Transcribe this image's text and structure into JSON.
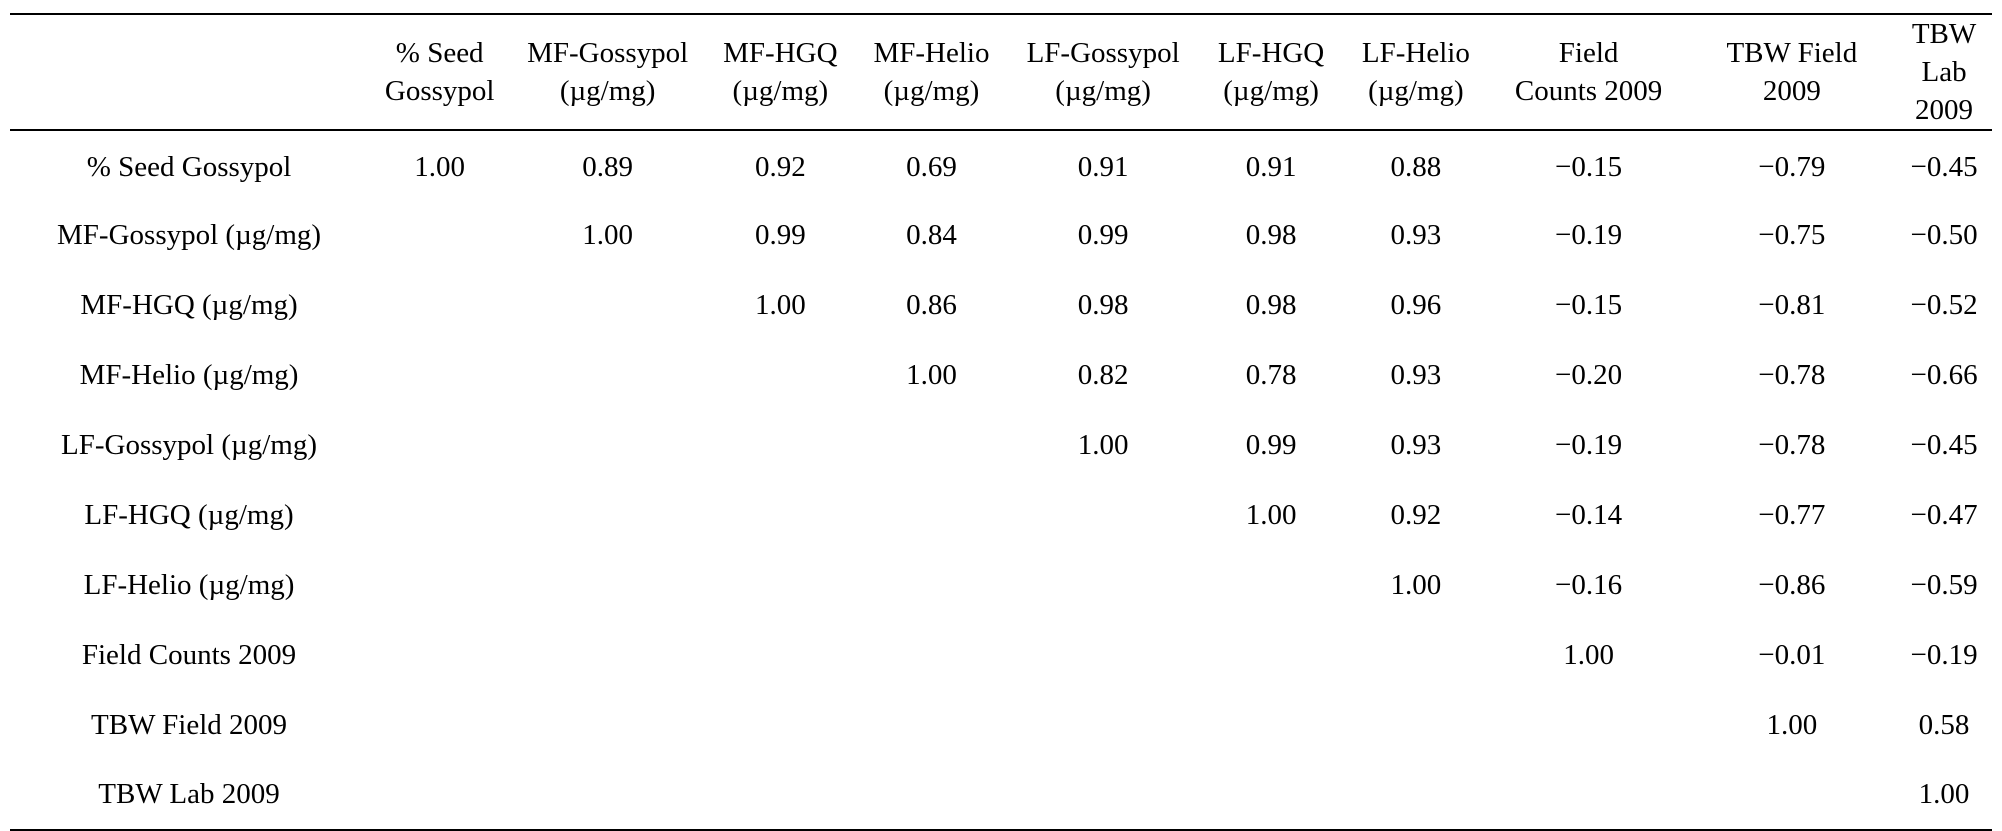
{
  "table": {
    "columns": [
      {
        "line1": "% Seed",
        "line2": "Gossypol"
      },
      {
        "line1": "MF-Gossypol",
        "line2": "(µg/mg)"
      },
      {
        "line1": "MF-HGQ",
        "line2": "(µg/mg)"
      },
      {
        "line1": "MF-Helio",
        "line2": "(µg/mg)"
      },
      {
        "line1": "LF-Gossypol",
        "line2": "(µg/mg)"
      },
      {
        "line1": "LF-HGQ",
        "line2": "(µg/mg)"
      },
      {
        "line1": "LF-Helio",
        "line2": "(µg/mg)"
      },
      {
        "line1": "Field",
        "line2": "Counts 2009"
      },
      {
        "line1": "TBW Field",
        "line2": "2009"
      },
      {
        "line1": "TBW",
        "line2": "Lab 2009"
      }
    ],
    "rows": [
      {
        "label": "% Seed Gossypol",
        "values": [
          "1.00",
          "0.89",
          "0.92",
          "0.69",
          "0.91",
          "0.91",
          "0.88",
          "−0.15",
          "−0.79",
          "−0.45"
        ]
      },
      {
        "label": "MF-Gossypol (µg/mg)",
        "values": [
          "",
          "1.00",
          "0.99",
          "0.84",
          "0.99",
          "0.98",
          "0.93",
          "−0.19",
          "−0.75",
          "−0.50"
        ]
      },
      {
        "label": "MF-HGQ (µg/mg)",
        "values": [
          "",
          "",
          "1.00",
          "0.86",
          "0.98",
          "0.98",
          "0.96",
          "−0.15",
          "−0.81",
          "−0.52"
        ]
      },
      {
        "label": "MF-Helio (µg/mg)",
        "values": [
          "",
          "",
          "",
          "1.00",
          "0.82",
          "0.78",
          "0.93",
          "−0.20",
          "−0.78",
          "−0.66"
        ]
      },
      {
        "label": "LF-Gossypol (µg/mg)",
        "values": [
          "",
          "",
          "",
          "",
          "1.00",
          "0.99",
          "0.93",
          "−0.19",
          "−0.78",
          "−0.45"
        ]
      },
      {
        "label": "LF-HGQ (µg/mg)",
        "values": [
          "",
          "",
          "",
          "",
          "",
          "1.00",
          "0.92",
          "−0.14",
          "−0.77",
          "−0.47"
        ]
      },
      {
        "label": "LF-Helio (µg/mg)",
        "values": [
          "",
          "",
          "",
          "",
          "",
          "",
          "1.00",
          "−0.16",
          "−0.86",
          "−0.59"
        ]
      },
      {
        "label": "Field Counts 2009",
        "values": [
          "",
          "",
          "",
          "",
          "",
          "",
          "",
          "1.00",
          "−0.01",
          "−0.19"
        ]
      },
      {
        "label": "TBW Field 2009",
        "values": [
          "",
          "",
          "",
          "",
          "",
          "",
          "",
          "",
          "1.00",
          "0.58"
        ]
      },
      {
        "label": "TBW Lab 2009",
        "values": [
          "",
          "",
          "",
          "",
          "",
          "",
          "",
          "",
          "",
          "1.00"
        ]
      }
    ]
  }
}
